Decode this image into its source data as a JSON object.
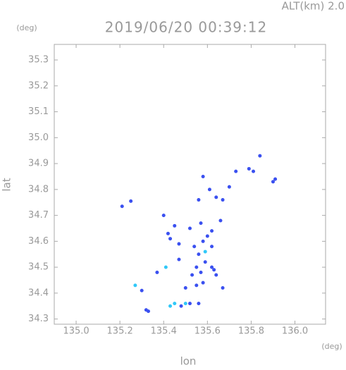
{
  "chart_data": {
    "type": "scatter",
    "title": "2019/06/20 00:39:12",
    "subtitle": "ALT(km) 2.0",
    "x_label": "lon",
    "y_label": "lat",
    "x_unit": "(deg)",
    "y_unit": "(deg)",
    "xlim": [
      134.9,
      136.14
    ],
    "ylim": [
      34.28,
      35.36
    ],
    "xticks": [
      {
        "value": 135,
        "label": "135.0"
      },
      135.2,
      135.4,
      135.6,
      135.8,
      {
        "value": 136,
        "label": "136.0"
      }
    ],
    "yticks": [
      {
        "value": 34.3,
        "label": "34.3"
      },
      34.4,
      34.5,
      34.6,
      34.7,
      34.8,
      34.9,
      {
        "value": 35,
        "label": "35.0"
      },
      35.1,
      35.2,
      35.3
    ],
    "series": [
      {
        "color": "#3a50f0",
        "x": [
          135.25,
          135.21,
          135.3,
          135.32,
          135.33,
          135.4,
          135.43,
          135.47,
          135.54,
          135.56,
          135.55,
          135.57,
          135.53,
          135.59,
          135.62,
          135.64,
          135.58,
          135.55,
          135.5,
          135.67,
          135.63,
          135.6,
          135.58,
          135.62,
          135.45,
          135.52,
          135.57,
          135.62,
          135.66,
          135.47,
          135.42,
          135.56,
          135.58,
          135.61,
          135.64,
          135.67,
          135.7,
          135.73,
          135.79,
          135.81,
          135.84,
          135.91,
          135.9,
          135.48,
          135.52,
          135.56,
          135.37
        ],
        "values": [
          34.755,
          34.735,
          34.41,
          34.335,
          34.33,
          34.7,
          34.61,
          34.59,
          34.58,
          34.55,
          34.5,
          34.48,
          34.47,
          34.52,
          34.5,
          34.47,
          34.44,
          34.43,
          34.42,
          34.42,
          34.49,
          34.62,
          34.6,
          34.58,
          34.66,
          34.65,
          34.67,
          34.64,
          34.68,
          34.53,
          34.63,
          34.76,
          34.85,
          34.8,
          34.77,
          34.76,
          34.81,
          34.87,
          34.88,
          34.87,
          34.93,
          34.84,
          34.83,
          34.35,
          34.36,
          34.36,
          34.48
        ]
      },
      {
        "color": "#30c8f8",
        "x": [
          135.27,
          135.41,
          135.43,
          135.45,
          135.5,
          135.59
        ],
        "values": [
          34.43,
          34.5,
          34.35,
          34.36,
          34.36,
          34.56
        ]
      }
    ]
  }
}
